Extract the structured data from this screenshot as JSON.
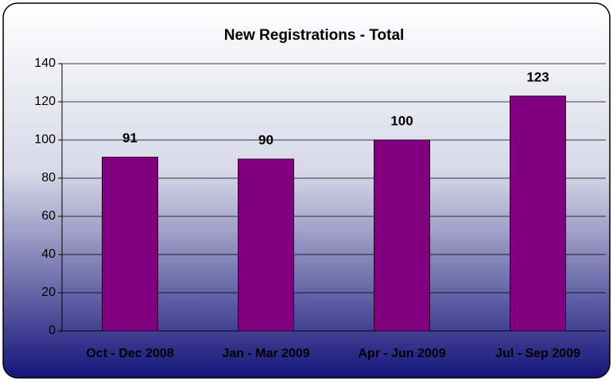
{
  "chart_data": {
    "type": "bar",
    "title": "New Registrations - Total",
    "categories": [
      "Oct - Dec 2008",
      "Jan - Mar 2009",
      "Apr - Jun 2009",
      "Jul - Sep 2009"
    ],
    "values": [
      91,
      90,
      100,
      123
    ],
    "color": "#800080",
    "ylim": [
      0,
      140
    ],
    "yticks": [
      0,
      20,
      40,
      60,
      80,
      100,
      120,
      140
    ],
    "grid": true
  }
}
